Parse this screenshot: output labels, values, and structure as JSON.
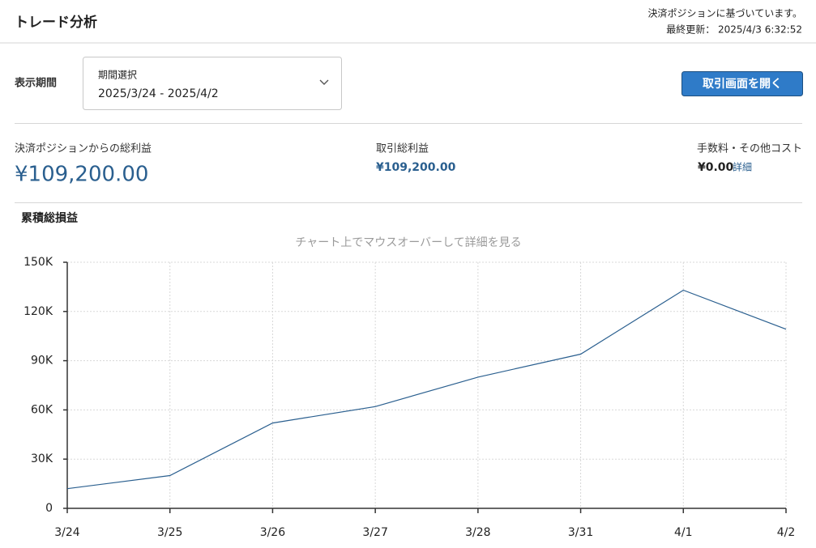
{
  "header": {
    "title": "トレード分析",
    "note": "決済ポジションに基づいています。",
    "updated": "最終更新： 2025/4/3 6:32:52"
  },
  "period": {
    "label": "表示期間",
    "select_label": "期間選択",
    "select_value": "2025/3/24 - 2025/4/2",
    "button": "取引画面を開く"
  },
  "metrics": [
    {
      "label": "決済ポジションからの総利益",
      "value": "¥109,200.00"
    },
    {
      "label": "取引総利益",
      "value": "¥109,200.00"
    },
    {
      "label": "手数料・その他コスト",
      "value": "¥0.00",
      "link": "詳細"
    }
  ],
  "chart_data": {
    "type": "line",
    "title": "累積総損益",
    "subtitle": "チャート上でマウスオーバーして詳細を見る",
    "categories": [
      "3/24",
      "3/25",
      "3/26",
      "3/27",
      "3/28",
      "3/31",
      "4/1",
      "4/2"
    ],
    "series": [
      {
        "color": "#2a5f8f",
        "values": [
          12000,
          20000,
          52000,
          62000,
          80000,
          94000,
          133000,
          109200
        ]
      }
    ],
    "ylim": [
      0,
      150000
    ],
    "yticks": [
      0,
      {
        "value": 30000,
        "label": "30K"
      },
      {
        "value": 60000,
        "label": "60K"
      },
      {
        "value": 90000,
        "label": "90K"
      },
      {
        "value": 120000,
        "label": "120K"
      },
      {
        "value": 150000,
        "label": "150K"
      }
    ],
    "grid": true
  }
}
